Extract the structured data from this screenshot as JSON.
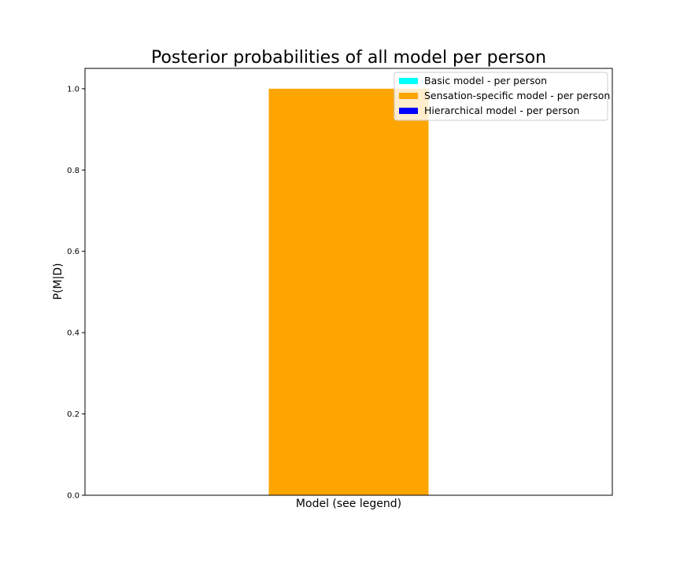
{
  "chart_data": {
    "type": "bar",
    "title": "Posterior probabilities of all model per person",
    "xlabel": "Model (see legend)",
    "ylabel": "P(M|D)",
    "ylim": [
      0,
      1.05
    ],
    "yticks": [
      "0.0",
      "0.2",
      "0.4",
      "0.6",
      "0.8",
      "1.0"
    ],
    "ytick_values": [
      0.0,
      0.2,
      0.4,
      0.6,
      0.8,
      1.0
    ],
    "grid": false,
    "legend_position": "top-right",
    "series": [
      {
        "name": "Basic model - per person",
        "color": "#00ffff",
        "value": 0.0
      },
      {
        "name": "Sensation-specific model - per person",
        "color": "#ffa500",
        "value": 1.0
      },
      {
        "name": "Hierarchical model - per person",
        "color": "#0000ff",
        "value": 0.0
      }
    ]
  }
}
